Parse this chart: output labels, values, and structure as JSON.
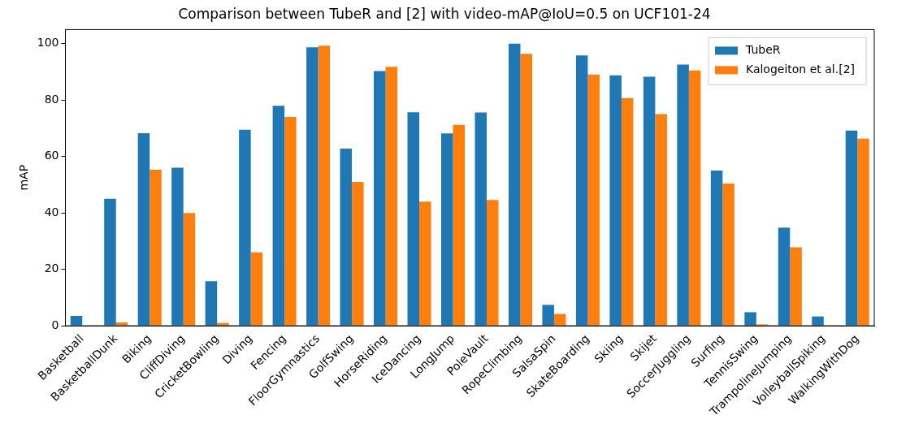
{
  "chart_data": {
    "type": "bar",
    "title": "Comparison between TubeR and [2] with video-mAP@IoU=0.5 on UCF101-24",
    "ylabel": "mAP",
    "categories": [
      "Basketball",
      "BasketballDunk",
      "Biking",
      "CliffDiving",
      "CricketBowling",
      "Diving",
      "Fencing",
      "FloorGymnastics",
      "GolfSwing",
      "HorseRiding",
      "IceDancing",
      "LongJump",
      "PoleVault",
      "RopeClimbing",
      "SalsaSpin",
      "SkateBoarding",
      "Skiing",
      "Skijet",
      "SoccerJuggling",
      "Surfing",
      "TennisSwing",
      "TrampolineJumping",
      "VolleyballSpiking",
      "WalkingWithDog"
    ],
    "series": [
      {
        "name": "TubeR",
        "color": "#1f77b4",
        "values": [
          3.5,
          45,
          68.3,
          56,
          15.8,
          69.5,
          78,
          98.7,
          62.8,
          90.3,
          75.7,
          68.2,
          75.6,
          100,
          7.4,
          95.8,
          88.8,
          88.3,
          92.6,
          55,
          4.8,
          34.8,
          3.3,
          69.2
        ]
      },
      {
        "name": "Kalogeiton et al.[2]",
        "color": "#ff7f0e",
        "values": [
          0,
          1.2,
          55.3,
          40,
          1,
          26,
          74,
          99.3,
          51,
          91.8,
          44,
          71.2,
          44.6,
          96.4,
          4.2,
          89.1,
          80.7,
          75,
          90.5,
          50.4,
          0.5,
          27.8,
          0,
          66.3
        ]
      }
    ],
    "ylim": [
      0,
      105
    ],
    "yticks": [
      0,
      20,
      40,
      60,
      80,
      100
    ],
    "grid": false,
    "legend": "top right"
  }
}
